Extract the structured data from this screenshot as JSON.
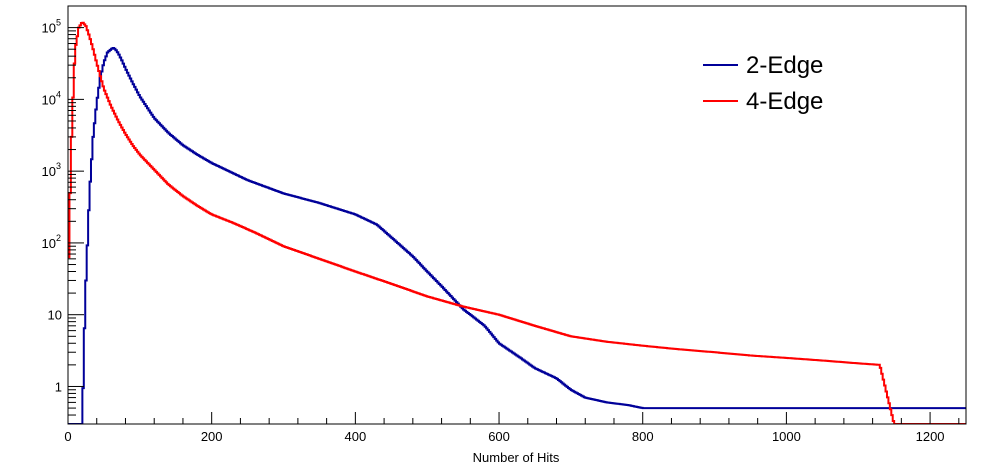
{
  "chart_data": {
    "type": "line",
    "style": "step-histogram",
    "title": "",
    "xlabel": "Number of Hits",
    "ylabel": "",
    "xlim": [
      0,
      1250
    ],
    "ylim": [
      0.3,
      200000
    ],
    "y_scale": "log",
    "grid": false,
    "legend_position": "top-right",
    "x_ticks": [
      {
        "value": 0,
        "label": "0"
      },
      {
        "value": 200,
        "label": "200"
      },
      {
        "value": 400,
        "label": "400"
      },
      {
        "value": 600,
        "label": "600"
      },
      {
        "value": 800,
        "label": "800"
      },
      {
        "value": 1000,
        "label": "1000"
      },
      {
        "value": 1200,
        "label": "1200"
      }
    ],
    "y_ticks": [
      {
        "value": 1,
        "label": "1",
        "exp": ""
      },
      {
        "value": 10,
        "label": "10",
        "exp": ""
      },
      {
        "value": 100,
        "label": "10",
        "exp": "2"
      },
      {
        "value": 1000,
        "label": "10",
        "exp": "3"
      },
      {
        "value": 10000,
        "label": "10",
        "exp": "4"
      },
      {
        "value": 100000,
        "label": "10",
        "exp": "5"
      }
    ],
    "series": [
      {
        "name": "2-Edge",
        "color": "#000099",
        "x": [
          0,
          20,
          22,
          25,
          30,
          35,
          40,
          45,
          50,
          55,
          60,
          63,
          66,
          70,
          75,
          80,
          90,
          100,
          120,
          140,
          160,
          180,
          200,
          250,
          300,
          350,
          400,
          430,
          450,
          480,
          500,
          520,
          550,
          580,
          600,
          630,
          650,
          680,
          700,
          720,
          750,
          780,
          800,
          850,
          900,
          950,
          1000,
          1050,
          1100,
          1150,
          1200,
          1250
        ],
        "y": [
          0.3,
          0.3,
          3,
          30,
          500,
          3000,
          9000,
          20000,
          33000,
          45000,
          50000,
          52000,
          50000,
          44000,
          35000,
          27000,
          17000,
          11000,
          5500,
          3400,
          2300,
          1700,
          1300,
          750,
          490,
          360,
          250,
          180,
          120,
          65,
          40,
          25,
          12,
          7,
          4,
          2.5,
          1.8,
          1.3,
          0.9,
          0.7,
          0.6,
          0.55,
          0.5,
          0.5,
          0.5,
          0.5,
          0.5,
          0.5,
          0.5,
          0.5,
          0.5,
          0.5
        ]
      },
      {
        "name": "4-Edge",
        "color": "#ff0000",
        "x": [
          0,
          2,
          5,
          8,
          10,
          15,
          20,
          25,
          30,
          35,
          40,
          45,
          50,
          60,
          70,
          80,
          90,
          100,
          120,
          140,
          160,
          180,
          200,
          230,
          260,
          300,
          350,
          400,
          450,
          500,
          550,
          600,
          650,
          700,
          750,
          800,
          850,
          900,
          950,
          1000,
          1050,
          1100,
          1130,
          1150,
          1200,
          1250
        ],
        "y": [
          20,
          200,
          3000,
          20000,
          50000,
          100000,
          120000,
          105000,
          75000,
          50000,
          32000,
          21000,
          14000,
          8000,
          5000,
          3300,
          2300,
          1700,
          1050,
          650,
          450,
          330,
          250,
          190,
          140,
          90,
          60,
          40,
          27,
          18,
          13,
          10,
          7,
          5,
          4.2,
          3.7,
          3.3,
          3.0,
          2.7,
          2.5,
          2.3,
          2.1,
          2.0,
          0.3,
          0.3,
          0.3
        ]
      }
    ]
  }
}
